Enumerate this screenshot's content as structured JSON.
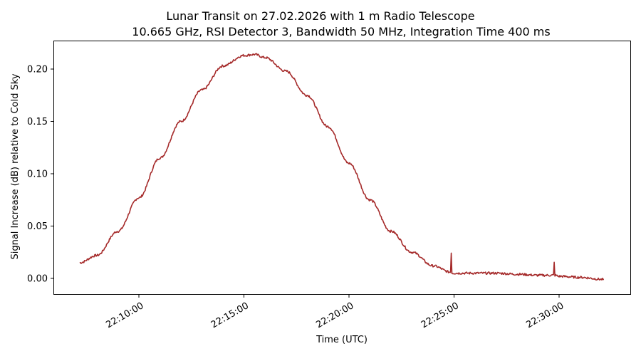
{
  "chart_data": {
    "type": "line",
    "title": "Lunar Transit on 27.02.2026 with 1 m Radio Telescope",
    "subtitle": "10.665 GHz, RSI Detector 3, Bandwidth 50 MHz, Integration Time 400 ms",
    "xlabel": "Time (UTC)",
    "ylabel": "Signal Increase (dB) relative to Cold Sky",
    "x_tick_labels": [
      "22:10:00",
      "22:15:00",
      "22:20:00",
      "22:25:00",
      "22:30:00"
    ],
    "y_tick_labels": [
      "0.00",
      "0.05",
      "0.10",
      "0.15",
      "0.20"
    ],
    "y_ticks": [
      0.0,
      0.05,
      0.1,
      0.15,
      0.2
    ],
    "ylim": [
      -0.015,
      0.227
    ],
    "xlim": [
      "22:06:00",
      "22:33:37"
    ],
    "grid": false,
    "legend": null,
    "line_color": "#a52a2a",
    "series": [
      {
        "name": "Signal",
        "x": [
          "22:07:11",
          "22:08:00",
          "22:09:00",
          "22:10:00",
          "22:11:00",
          "22:12:00",
          "22:13:00",
          "22:14:00",
          "22:15:00",
          "22:15:30",
          "22:16:00",
          "22:17:00",
          "22:18:00",
          "22:19:00",
          "22:20:00",
          "22:21:00",
          "22:22:00",
          "22:23:00",
          "22:24:00",
          "22:24:50",
          "22:24:52",
          "22:24:54",
          "22:25:00",
          "22:26:00",
          "22:27:00",
          "22:28:00",
          "22:29:00",
          "22:29:44",
          "22:29:46",
          "22:29:48",
          "22:30:00",
          "22:31:00",
          "22:32:08"
        ],
        "values": [
          0.015,
          0.022,
          0.045,
          0.077,
          0.115,
          0.15,
          0.18,
          0.203,
          0.213,
          0.214,
          0.211,
          0.198,
          0.175,
          0.145,
          0.11,
          0.075,
          0.045,
          0.025,
          0.012,
          0.006,
          0.025,
          0.005,
          0.005,
          0.005,
          0.005,
          0.004,
          0.003,
          0.003,
          0.015,
          0.003,
          0.002,
          0.001,
          -0.001
        ]
      }
    ],
    "annotations": [
      {
        "label": "spike",
        "x": "22:24:52",
        "y": 0.025
      },
      {
        "label": "spike",
        "x": "22:29:46",
        "y": 0.015
      }
    ]
  }
}
